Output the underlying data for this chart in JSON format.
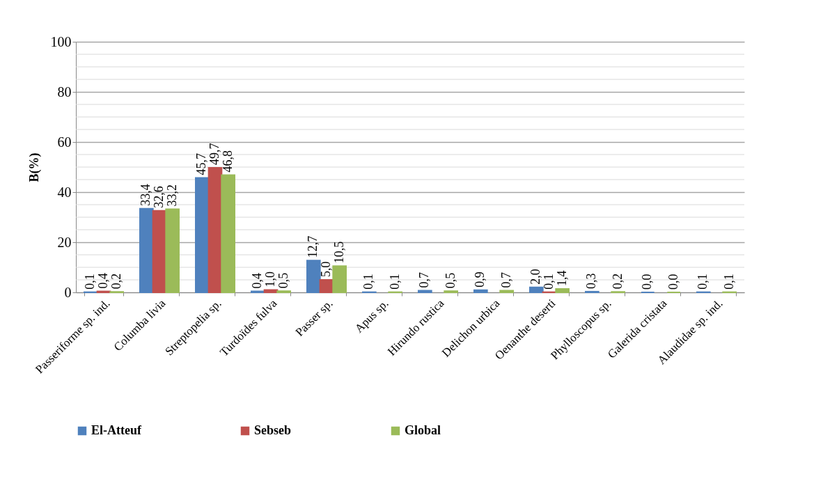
{
  "chart_data": {
    "type": "bar",
    "ylabel": "B(%)",
    "categories": [
      "Passeriforme sp. ind.",
      "Columba livia",
      "Streptopelia sp.",
      "Turdoïdes fulva",
      "Passer sp.",
      "Apus sp.",
      "Hirundo rustica",
      "Delichon urbica",
      "Oenanthe deserti",
      "Phylloscopus sp.",
      "Galerida cristata",
      "Alaudidae sp. ind."
    ],
    "series": [
      {
        "name": "El-Atteuf",
        "color": "#4f81bd",
        "values": [
          0.1,
          33.4,
          45.7,
          0.4,
          12.7,
          0.1,
          0.7,
          0.9,
          2.0,
          0.3,
          0.0,
          0.1
        ],
        "value_labels": [
          "0,1",
          "33,4",
          "45,7",
          "0,4",
          "12,7",
          "0,1",
          "0,7",
          "0,9",
          "2,0",
          "0,3",
          "0,0",
          "0,1"
        ]
      },
      {
        "name": "Sebseb",
        "color": "#c0504d",
        "values": [
          0.4,
          32.6,
          49.7,
          1.0,
          5.0,
          null,
          null,
          null,
          0.1,
          null,
          null,
          null
        ],
        "value_labels": [
          "0,4",
          "32,6",
          "49,7",
          "1,0",
          "5,0",
          null,
          null,
          null,
          "0,1",
          null,
          null,
          null
        ]
      },
      {
        "name": "Global",
        "color": "#9bbb59",
        "values": [
          0.2,
          33.2,
          46.8,
          0.5,
          10.5,
          0.1,
          0.5,
          0.7,
          1.4,
          0.2,
          0.0,
          0.1
        ],
        "value_labels": [
          "0,2",
          "33,2",
          "46,8",
          "0,5",
          "10,5",
          "0,1",
          "0,5",
          "0,7",
          "1,4",
          "0,2",
          "0,0",
          "0,1"
        ]
      }
    ],
    "ylim": [
      0,
      100
    ],
    "yticks": [
      0,
      20,
      40,
      60,
      80,
      100
    ],
    "grid": true,
    "legend": "bottom"
  }
}
